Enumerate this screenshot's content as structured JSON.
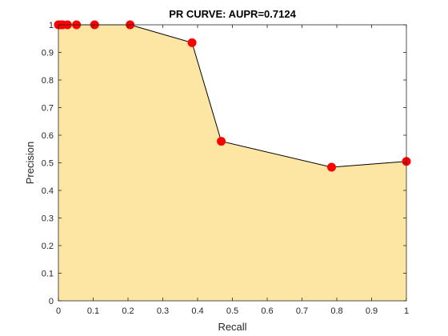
{
  "chart_data": {
    "type": "area",
    "title": "PR CURVE: AUPR=0.7124",
    "xlabel": "Recall",
    "ylabel": "Precision",
    "xlim": [
      0,
      1
    ],
    "ylim": [
      0,
      1
    ],
    "xticks": [
      0,
      0.1,
      0.2,
      0.3,
      0.4,
      0.5,
      0.6,
      0.7,
      0.8,
      0.9,
      1
    ],
    "yticks": [
      0,
      0.1,
      0.2,
      0.3,
      0.4,
      0.5,
      0.6,
      0.7,
      0.8,
      0.9,
      1
    ],
    "xtick_labels": [
      "0",
      "0.1",
      "0.2",
      "0.3",
      "0.4",
      "0.5",
      "0.6",
      "0.7",
      "0.8",
      "0.9",
      "1"
    ],
    "ytick_labels": [
      "0",
      "0.1",
      "0.2",
      "0.3",
      "0.4",
      "0.5",
      "0.6",
      "0.7",
      "0.8",
      "0.9",
      "1"
    ],
    "grid": false,
    "series": [
      {
        "x": [
          0,
          0.006,
          0.012,
          0.026,
          0.052,
          0.104,
          0.206,
          0.384,
          0.468,
          0.785,
          1.0
        ],
        "y": [
          1,
          1,
          1,
          1,
          1,
          1,
          1,
          0.935,
          0.578,
          0.484,
          0.505
        ]
      }
    ],
    "colors": {
      "fill": "#fde6a3",
      "line": "#000000",
      "marker": "#ff0000"
    }
  }
}
